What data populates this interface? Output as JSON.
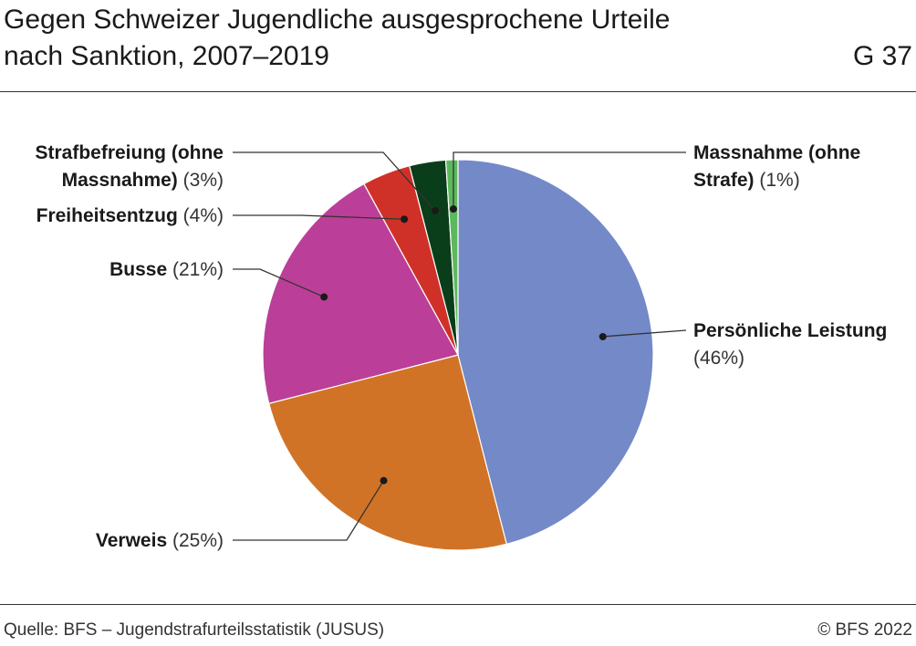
{
  "chart_data": {
    "type": "pie",
    "title": "Gegen Schweizer Jugendliche ausgesprochene Urteile nach Sanktion, 2007–2019",
    "chart_id": "G 37",
    "categories": [
      "Persönliche Leistung",
      "Verweis",
      "Busse",
      "Freiheitsentzug",
      "Strafbefreiung (ohne Massnahme)",
      "Massnahme (ohne Strafe)"
    ],
    "values": [
      46,
      25,
      21,
      4,
      3,
      1
    ],
    "value_labels": [
      "(46%)",
      "(25%)",
      "(21%)",
      "(4%)",
      "(3%)",
      "(1%)"
    ],
    "colors": [
      "#7389c8",
      "#d17327",
      "#bb3f98",
      "#cf3128",
      "#0a3d19",
      "#5cb85c"
    ],
    "source": "Quelle: BFS – Jugendstrafurteilsstatistik (JUSUS)",
    "copyright": "© BFS 2022"
  }
}
